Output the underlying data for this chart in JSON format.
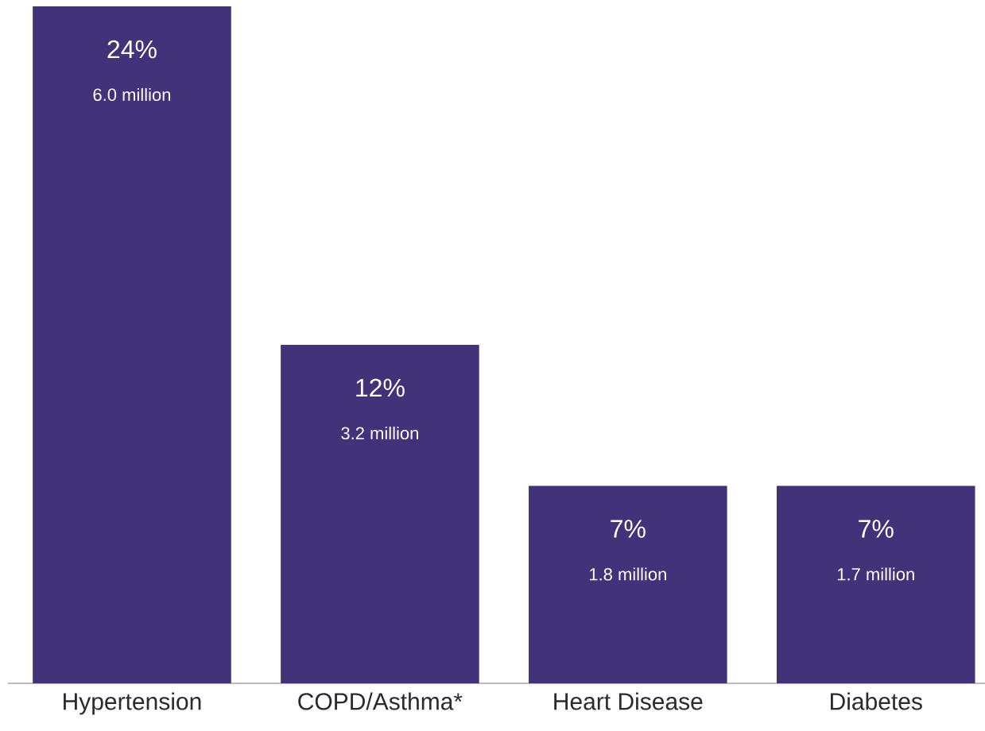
{
  "chart_data": {
    "type": "bar",
    "categories": [
      "Hypertension",
      "COPD/Asthma*",
      "Heart Disease",
      "Diabetes"
    ],
    "values": [
      24,
      12,
      7,
      7
    ],
    "color": "#42327a",
    "value_labels": [
      "24%",
      "12%",
      "7%",
      "7%"
    ],
    "annotations": [
      "6.0 million",
      "3.2 million",
      "1.8 million",
      "1.7 million"
    ]
  }
}
